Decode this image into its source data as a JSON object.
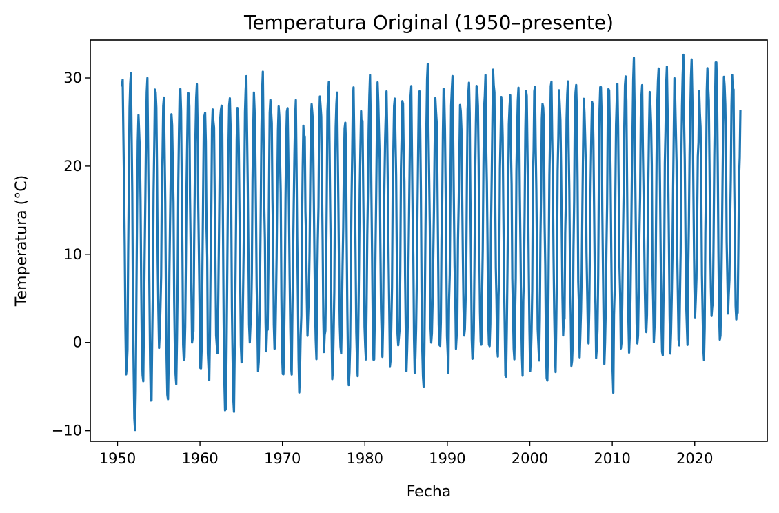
{
  "chart_data": {
    "type": "line",
    "title": "Temperatura Original (1950–presente)",
    "xlabel": "Fecha",
    "ylabel": "Temperatura (°C)",
    "xlim": [
      1946.7,
      2028.8
    ],
    "ylim": [
      -11.2,
      34.3
    ],
    "x_ticks": [
      1950,
      1960,
      1970,
      1980,
      1990,
      2000,
      2010,
      2020
    ],
    "x_tick_labels": [
      "1950",
      "1960",
      "1970",
      "1980",
      "1990",
      "2000",
      "2010",
      "2020"
    ],
    "y_ticks": [
      -10,
      0,
      10,
      20,
      30
    ],
    "y_tick_labels": [
      "−10",
      "0",
      "10",
      "20",
      "30"
    ],
    "grid": false,
    "line_color": "#1f77b4",
    "series": [
      {
        "name": "",
        "x_start": 1950.5,
        "x_end": 2025.6,
        "sampling": "monthly",
        "pattern": "seasonal oscillation, warm peaks mid-year and cold troughs in winter, slight warming trend",
        "annual_max": [
          {
            "year": 1950,
            "value": 29.6
          },
          {
            "year": 1951,
            "value": 30.0
          },
          {
            "year": 1952,
            "value": 26.3
          },
          {
            "year": 1953,
            "value": 29.0
          },
          {
            "year": 1954,
            "value": 29.2
          },
          {
            "year": 1955,
            "value": 27.4
          },
          {
            "year": 1956,
            "value": 26.4
          },
          {
            "year": 1957,
            "value": 29.1
          },
          {
            "year": 1958,
            "value": 28.8
          },
          {
            "year": 1959,
            "value": 28.3
          },
          {
            "year": 1960,
            "value": 26.2
          },
          {
            "year": 1961,
            "value": 26.9
          },
          {
            "year": 1962,
            "value": 27.0
          },
          {
            "year": 1963,
            "value": 27.5
          },
          {
            "year": 1964,
            "value": 27.1
          },
          {
            "year": 1965,
            "value": 29.2
          },
          {
            "year": 1966,
            "value": 28.9
          },
          {
            "year": 1967,
            "value": 29.1
          },
          {
            "year": 1968,
            "value": 28.0
          },
          {
            "year": 1969,
            "value": 27.3
          },
          {
            "year": 1970,
            "value": 26.7
          },
          {
            "year": 1971,
            "value": 26.1
          },
          {
            "year": 1972,
            "value": 25.0
          },
          {
            "year": 1973,
            "value": 27.5
          },
          {
            "year": 1974,
            "value": 28.4
          },
          {
            "year": 1975,
            "value": 28.6
          },
          {
            "year": 1976,
            "value": 27.5
          },
          {
            "year": 1977,
            "value": 24.8
          },
          {
            "year": 1978,
            "value": 27.9
          },
          {
            "year": 1979,
            "value": 26.7
          },
          {
            "year": 1980,
            "value": 28.5
          },
          {
            "year": 1981,
            "value": 30.0
          },
          {
            "year": 1982,
            "value": 26.6
          },
          {
            "year": 1983,
            "value": 27.3
          },
          {
            "year": 1984,
            "value": 27.9
          },
          {
            "year": 1985,
            "value": 28.5
          },
          {
            "year": 1986,
            "value": 28.6
          },
          {
            "year": 1987,
            "value": 30.4
          },
          {
            "year": 1988,
            "value": 28.2
          },
          {
            "year": 1989,
            "value": 29.3
          },
          {
            "year": 1990,
            "value": 29.2
          },
          {
            "year": 1991,
            "value": 27.4
          },
          {
            "year": 1992,
            "value": 28.7
          },
          {
            "year": 1993,
            "value": 29.6
          },
          {
            "year": 1994,
            "value": 28.5
          },
          {
            "year": 1995,
            "value": 31.5
          },
          {
            "year": 1996,
            "value": 28.4
          },
          {
            "year": 1997,
            "value": 27.2
          },
          {
            "year": 1998,
            "value": 27.9
          },
          {
            "year": 1999,
            "value": 29.1
          },
          {
            "year": 2000,
            "value": 29.0
          },
          {
            "year": 2001,
            "value": 27.6
          },
          {
            "year": 2002,
            "value": 29.6
          },
          {
            "year": 2003,
            "value": 29.1
          },
          {
            "year": 2004,
            "value": 28.7
          },
          {
            "year": 2005,
            "value": 28.9
          },
          {
            "year": 2006,
            "value": 28.1
          },
          {
            "year": 2007,
            "value": 27.8
          },
          {
            "year": 2008,
            "value": 29.5
          },
          {
            "year": 2009,
            "value": 29.3
          },
          {
            "year": 2010,
            "value": 27.9
          },
          {
            "year": 2011,
            "value": 29.7
          },
          {
            "year": 2012,
            "value": 30.4
          },
          {
            "year": 2013,
            "value": 28.4
          },
          {
            "year": 2014,
            "value": 28.9
          },
          {
            "year": 2015,
            "value": 30.2
          },
          {
            "year": 2016,
            "value": 29.9
          },
          {
            "year": 2017,
            "value": 30.5
          },
          {
            "year": 2018,
            "value": 30.9
          },
          {
            "year": 2019,
            "value": 30.5
          },
          {
            "year": 2020,
            "value": 29.0
          },
          {
            "year": 2021,
            "value": 31.6
          },
          {
            "year": 2022,
            "value": 32.3
          },
          {
            "year": 2023,
            "value": 30.6
          },
          {
            "year": 2024,
            "value": 30.8
          },
          {
            "year": 2025,
            "value": 26.8
          }
        ],
        "annual_min": [
          {
            "year": 1951,
            "value": -4.2
          },
          {
            "year": 1952,
            "value": -9.2
          },
          {
            "year": 1953,
            "value": -4.3
          },
          {
            "year": 1954,
            "value": -7.2
          },
          {
            "year": 1955,
            "value": -1.1
          },
          {
            "year": 1956,
            "value": -6.5
          },
          {
            "year": 1957,
            "value": -4.2
          },
          {
            "year": 1958,
            "value": -2.5
          },
          {
            "year": 1959,
            "value": -0.5
          },
          {
            "year": 1960,
            "value": -3.4
          },
          {
            "year": 1961,
            "value": -3.5
          },
          {
            "year": 1962,
            "value": -0.8
          },
          {
            "year": 1963,
            "value": -8.3
          },
          {
            "year": 1964,
            "value": -7.0
          },
          {
            "year": 1965,
            "value": -2.8
          },
          {
            "year": 1966,
            "value": -0.5
          },
          {
            "year": 1967,
            "value": -3.8
          },
          {
            "year": 1968,
            "value": -1.5
          },
          {
            "year": 1969,
            "value": -1.2
          },
          {
            "year": 1970,
            "value": -4.1
          },
          {
            "year": 1971,
            "value": -3.2
          },
          {
            "year": 1972,
            "value": -6.2
          },
          {
            "year": 1973,
            "value": 0.3
          },
          {
            "year": 1974,
            "value": -0.3
          },
          {
            "year": 1975,
            "value": -1.6
          },
          {
            "year": 1976,
            "value": -4.7
          },
          {
            "year": 1977,
            "value": -0.9
          },
          {
            "year": 1978,
            "value": -5.4
          },
          {
            "year": 1979,
            "value": -2.4
          },
          {
            "year": 1980,
            "value": -0.9
          },
          {
            "year": 1981,
            "value": -2.5
          },
          {
            "year": 1982,
            "value": 0.4
          },
          {
            "year": 1983,
            "value": -3.2
          },
          {
            "year": 1984,
            "value": -0.8
          },
          {
            "year": 1985,
            "value": -3.8
          },
          {
            "year": 1986,
            "value": -4.0
          },
          {
            "year": 1987,
            "value": -4.4
          },
          {
            "year": 1988,
            "value": -0.5
          },
          {
            "year": 1989,
            "value": -0.8
          },
          {
            "year": 1990,
            "value": -1.7
          },
          {
            "year": 1991,
            "value": -1.2
          },
          {
            "year": 1992,
            "value": 0.3
          },
          {
            "year": 1993,
            "value": -2.4
          },
          {
            "year": 1994,
            "value": -0.4
          },
          {
            "year": 1995,
            "value": -0.8
          },
          {
            "year": 1996,
            "value": -1.1
          },
          {
            "year": 1997,
            "value": -4.3
          },
          {
            "year": 1998,
            "value": -1.2
          },
          {
            "year": 1999,
            "value": -2.0
          },
          {
            "year": 2000,
            "value": -3.8
          },
          {
            "year": 2001,
            "value": -0.7
          },
          {
            "year": 2002,
            "value": -4.6
          },
          {
            "year": 2003,
            "value": -1.5
          },
          {
            "year": 2004,
            "value": 0.3
          },
          {
            "year": 2005,
            "value": -3.2
          },
          {
            "year": 2006,
            "value": -2.2
          },
          {
            "year": 2007,
            "value": 0.8
          },
          {
            "year": 2008,
            "value": -2.3
          },
          {
            "year": 2009,
            "value": -3.0
          },
          {
            "year": 2010,
            "value": -3.8
          },
          {
            "year": 2011,
            "value": -1.2
          },
          {
            "year": 2012,
            "value": -1.7
          },
          {
            "year": 2013,
            "value": -0.6
          },
          {
            "year": 2014,
            "value": 1.1
          },
          {
            "year": 2015,
            "value": -0.5
          },
          {
            "year": 2016,
            "value": -1.6
          },
          {
            "year": 2017,
            "value": -1.8
          },
          {
            "year": 2018,
            "value": -0.2
          },
          {
            "year": 2019,
            "value": 1.6
          },
          {
            "year": 2020,
            "value": 2.4
          },
          {
            "year": 2021,
            "value": -1.2
          },
          {
            "year": 2022,
            "value": 2.5
          },
          {
            "year": 2023,
            "value": -0.2
          },
          {
            "year": 2024,
            "value": 2.8
          },
          {
            "year": 2025,
            "value": 2.2
          }
        ]
      }
    ]
  }
}
